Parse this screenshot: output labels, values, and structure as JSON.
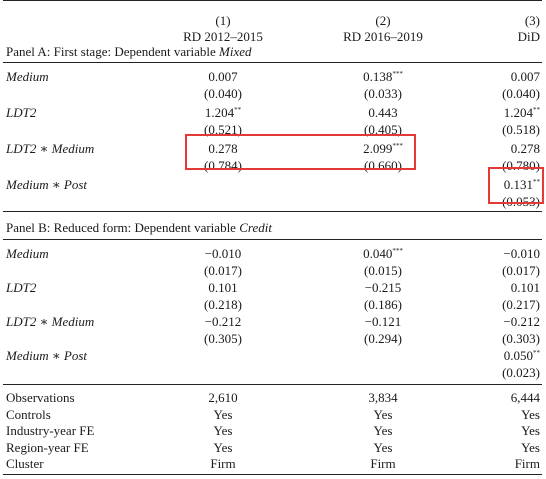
{
  "header": {
    "col_numbers": [
      "(1)",
      "(2)",
      "(3)"
    ],
    "col_labels": [
      "RD 2012–2015",
      "RD 2016–2019",
      "DiD"
    ]
  },
  "panelA": {
    "title_prefix": "Panel A: First stage: Dependent variable ",
    "title_var": "Mixed",
    "rows": [
      {
        "label": "Medium",
        "coef": [
          "0.007",
          "0.138",
          "0.007"
        ],
        "stars": [
          "",
          "***",
          ""
        ],
        "se": [
          "(0.040)",
          "(0.033)",
          "(0.040)"
        ]
      },
      {
        "label": "LDT2",
        "coef": [
          "1.204",
          "0.443",
          "1.204"
        ],
        "stars": [
          "**",
          "",
          "**"
        ],
        "se": [
          "(0.521)",
          "(0.405)",
          "(0.518)"
        ]
      },
      {
        "label": "LDT2 ∗ Medium",
        "coef": [
          "0.278",
          "2.099",
          "0.278"
        ],
        "stars": [
          "",
          "***",
          ""
        ],
        "se": [
          "(0.784)",
          "(0.660)",
          "(0.780)"
        ]
      },
      {
        "label": "Medium ∗ Post",
        "coef": [
          "",
          "",
          "0.131"
        ],
        "stars": [
          "",
          "",
          "**"
        ],
        "se": [
          "",
          "",
          "(0.053)"
        ]
      }
    ]
  },
  "panelB": {
    "title_prefix": "Panel B: Reduced form: Dependent variable ",
    "title_var": "Credit",
    "rows": [
      {
        "label": "Medium",
        "coef": [
          "−0.010",
          "0.040",
          "−0.010"
        ],
        "stars": [
          "",
          "***",
          ""
        ],
        "se": [
          "(0.017)",
          "(0.015)",
          "(0.017)"
        ]
      },
      {
        "label": "LDT2",
        "coef": [
          "0.101",
          "−0.215",
          "0.101"
        ],
        "stars": [
          "",
          "",
          ""
        ],
        "se": [
          "(0.218)",
          "(0.186)",
          "(0.217)"
        ]
      },
      {
        "label": "LDT2 ∗ Medium",
        "coef": [
          "−0.212",
          "−0.121",
          "−0.212"
        ],
        "stars": [
          "",
          "",
          ""
        ],
        "se": [
          "(0.305)",
          "(0.294)",
          "(0.303)"
        ]
      },
      {
        "label": "Medium ∗ Post",
        "coef": [
          "",
          "",
          "0.050"
        ],
        "stars": [
          "",
          "",
          "**"
        ],
        "se": [
          "",
          "",
          "(0.023)"
        ]
      }
    ]
  },
  "footer": [
    {
      "label": "Observations",
      "values": [
        "2,610",
        "3,834",
        "6,444"
      ]
    },
    {
      "label": "Controls",
      "values": [
        "Yes",
        "Yes",
        "Yes"
      ]
    },
    {
      "label": "Industry-year FE",
      "values": [
        "Yes",
        "Yes",
        "Yes"
      ]
    },
    {
      "label": "Region-year FE",
      "values": [
        "Yes",
        "Yes",
        "Yes"
      ]
    },
    {
      "label": "Cluster",
      "values": [
        "Firm",
        "Firm",
        "Firm"
      ]
    }
  ],
  "highlight_color": "#e53935"
}
